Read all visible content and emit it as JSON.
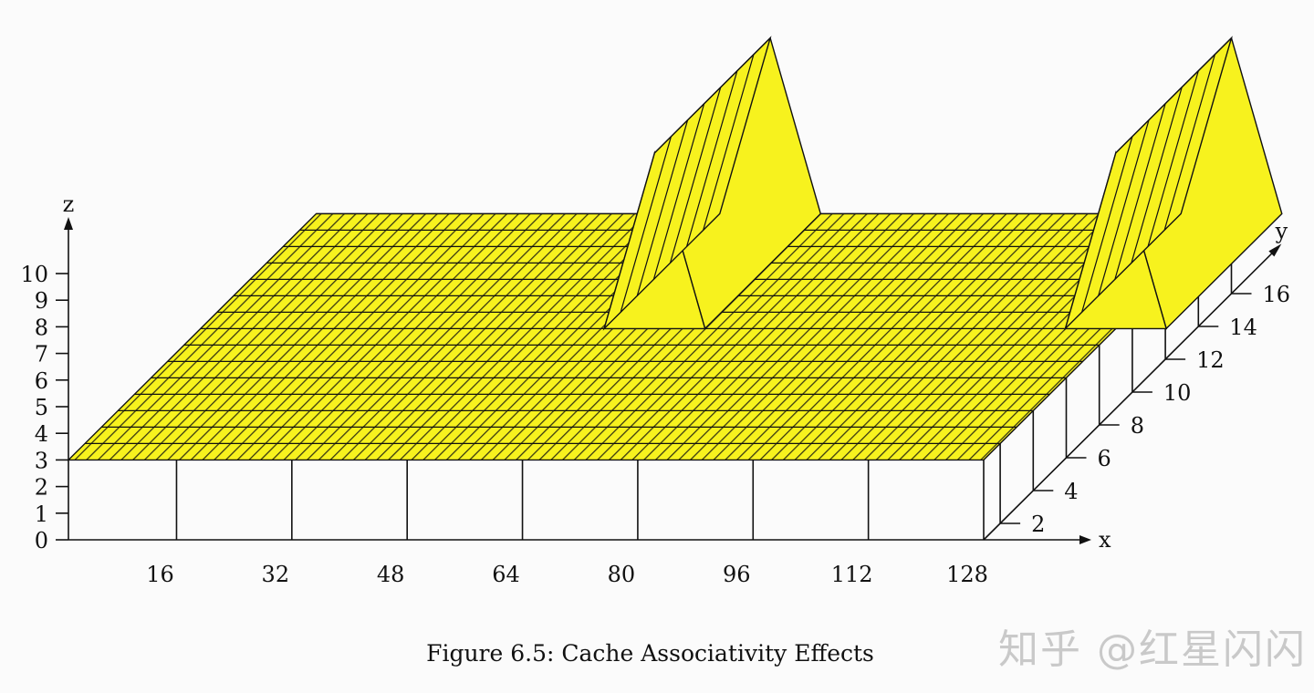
{
  "caption": "Figure 6.5: Cache Associativity Effects",
  "watermark": "知乎 @红星闪闪",
  "colors": {
    "surface": "#f7f21e",
    "hatch": "#3a3a12",
    "line": "#111111"
  },
  "chart_data": {
    "type": "surface-3d",
    "title": "",
    "xlabel": "x",
    "ylabel": "y",
    "zlabel": "z",
    "x_ticks": [
      16,
      32,
      48,
      64,
      80,
      96,
      112,
      128
    ],
    "y_ticks": [
      2,
      4,
      6,
      8,
      10,
      12,
      14,
      16
    ],
    "z_ticks": [
      0,
      1,
      2,
      3,
      4,
      5,
      6,
      7,
      8,
      9,
      10
    ],
    "xlim": [
      1,
      128
    ],
    "ylim": [
      1,
      16
    ],
    "zlim": [
      0,
      10
    ],
    "baseline_z": 3,
    "peak_z": 9.6,
    "spikes": [
      {
        "x": 64,
        "y_from": 9,
        "y_to": 16,
        "z": 9.6
      },
      {
        "x": 128,
        "y_from": 9,
        "y_to": 16,
        "z": 9.6
      }
    ]
  }
}
